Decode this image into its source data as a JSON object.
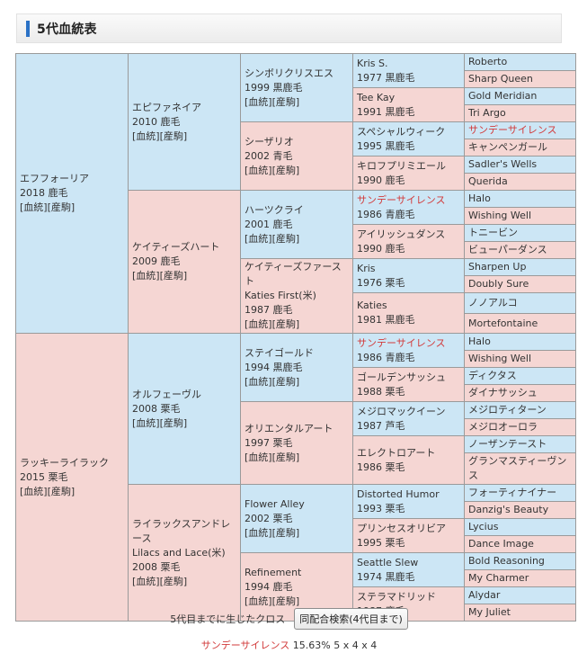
{
  "page_title": "5代血統表",
  "link_labels": {
    "blood": "[血統]",
    "produce": "[産駒]"
  },
  "gen1": [
    {
      "name": "エフフォーリア",
      "info": "2018 鹿毛",
      "sex": "male"
    },
    {
      "name": "ラッキーライラック",
      "info": "2015 栗毛",
      "sex": "female"
    }
  ],
  "gen2": [
    {
      "name": "エピファネイア",
      "info": "2010 鹿毛",
      "sex": "male"
    },
    {
      "name": "ケイティーズハート",
      "info": "2009 鹿毛",
      "sex": "female"
    },
    {
      "name": "オルフェーヴル",
      "info": "2008 栗毛",
      "sex": "male"
    },
    {
      "name": "ライラックスアンドレース",
      "alt": "Lilacs and Lace(米)",
      "info": "2008 栗毛",
      "sex": "female"
    }
  ],
  "gen3": [
    {
      "name": "シンボリクリスエス",
      "info": "1999 黒鹿毛",
      "sex": "male"
    },
    {
      "name": "シーザリオ",
      "info": "2002 青毛",
      "sex": "female"
    },
    {
      "name": "ハーツクライ",
      "info": "2001 鹿毛",
      "sex": "male"
    },
    {
      "name": "ケイティーズファースト",
      "alt": "Katies First(米)",
      "info": "1987 鹿毛",
      "sex": "female"
    },
    {
      "name": "ステイゴールド",
      "info": "1994 黒鹿毛",
      "sex": "male"
    },
    {
      "name": "オリエンタルアート",
      "info": "1997 栗毛",
      "sex": "female"
    },
    {
      "name": "Flower Alley",
      "info": "2002 栗毛",
      "sex": "male"
    },
    {
      "name": "Refinement",
      "info": "1994 鹿毛",
      "sex": "female"
    }
  ],
  "gen4": [
    {
      "name": "Kris S.",
      "info": "1977 黒鹿毛",
      "sex": "male"
    },
    {
      "name": "Tee Kay",
      "info": "1991 黒鹿毛",
      "sex": "female"
    },
    {
      "name": "スペシャルウィーク",
      "info": "1995 黒鹿毛",
      "sex": "male"
    },
    {
      "name": "キロフプリミエール",
      "info": "1990 鹿毛",
      "sex": "female"
    },
    {
      "name": "サンデーサイレンス",
      "info": "1986 青鹿毛",
      "sex": "male",
      "cross": true
    },
    {
      "name": "アイリッシュダンス",
      "info": "1990 鹿毛",
      "sex": "female"
    },
    {
      "name": "Kris",
      "info": "1976 栗毛",
      "sex": "male"
    },
    {
      "name": "Katies",
      "info": "1981 黒鹿毛",
      "sex": "female"
    },
    {
      "name": "サンデーサイレンス",
      "info": "1986 青鹿毛",
      "sex": "male",
      "cross": true
    },
    {
      "name": "ゴールデンサッシュ",
      "info": "1988 栗毛",
      "sex": "female"
    },
    {
      "name": "メジロマックイーン",
      "info": "1987 芦毛",
      "sex": "male"
    },
    {
      "name": "エレクトロアート",
      "info": "1986 栗毛",
      "sex": "female"
    },
    {
      "name": "Distorted Humor",
      "info": "1993 栗毛",
      "sex": "male"
    },
    {
      "name": "プリンセスオリビア",
      "info": "1995 栗毛",
      "sex": "female"
    },
    {
      "name": "Seattle Slew",
      "info": "1974 黒鹿毛",
      "sex": "male"
    },
    {
      "name": "ステラマドリッド",
      "info": "1987 鹿毛",
      "sex": "female"
    }
  ],
  "gen5": [
    {
      "name": "Roberto",
      "sex": "male"
    },
    {
      "name": "Sharp Queen",
      "sex": "female"
    },
    {
      "name": "Gold Meridian",
      "sex": "male"
    },
    {
      "name": "Tri Argo",
      "sex": "female"
    },
    {
      "name": "サンデーサイレンス",
      "sex": "male",
      "cross": true
    },
    {
      "name": "キャンペンガール",
      "sex": "female"
    },
    {
      "name": "Sadler's Wells",
      "sex": "male"
    },
    {
      "name": "Querida",
      "sex": "female"
    },
    {
      "name": "Halo",
      "sex": "male"
    },
    {
      "name": "Wishing Well",
      "sex": "female"
    },
    {
      "name": "トニービン",
      "sex": "male"
    },
    {
      "name": "ビューパーダンス",
      "sex": "female"
    },
    {
      "name": "Sharpen Up",
      "sex": "male"
    },
    {
      "name": "Doubly Sure",
      "sex": "female"
    },
    {
      "name": "ノノアルコ",
      "sex": "male"
    },
    {
      "name": "Mortefontaine",
      "sex": "female"
    },
    {
      "name": "Halo",
      "sex": "male"
    },
    {
      "name": "Wishing Well",
      "sex": "female"
    },
    {
      "name": "ディクタス",
      "sex": "male"
    },
    {
      "name": "ダイナサッシュ",
      "sex": "female"
    },
    {
      "name": "メジロティターン",
      "sex": "male"
    },
    {
      "name": "メジロオーロラ",
      "sex": "female"
    },
    {
      "name": "ノーザンテースト",
      "sex": "male"
    },
    {
      "name": "グランマスティーヴンス",
      "sex": "female"
    },
    {
      "name": "フォーティナイナー",
      "sex": "male"
    },
    {
      "name": "Danzig's Beauty",
      "sex": "female"
    },
    {
      "name": "Lycius",
      "sex": "male"
    },
    {
      "name": "Dance Image",
      "sex": "female"
    },
    {
      "name": "Bold Reasoning",
      "sex": "male"
    },
    {
      "name": "My Charmer",
      "sex": "female"
    },
    {
      "name": "Alydar",
      "sex": "male"
    },
    {
      "name": "My Juliet",
      "sex": "female"
    }
  ],
  "footer": {
    "cross_label": "5代目までに生じたクロス",
    "search_button": "同配合検索(4代目まで)",
    "cross_horse": "サンデーサイレンス",
    "cross_detail": "15.63%  5 x 4 x 4"
  },
  "colors": {
    "male_bg": "#cce6f5",
    "female_bg": "#f5d6d3",
    "cross_text": "#d23b3b",
    "accent": "#2b72c6"
  }
}
